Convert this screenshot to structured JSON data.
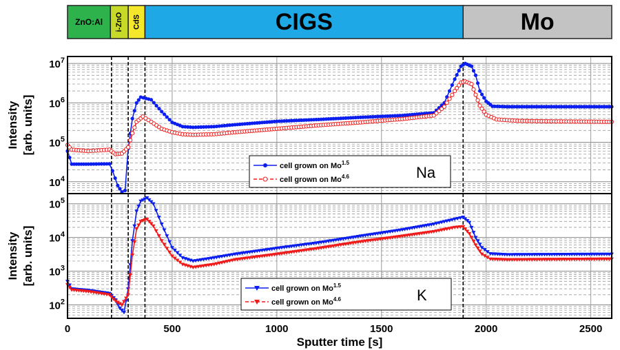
{
  "chart_data": {
    "type": "line",
    "x_axis": {
      "label": "Sputter time [s]",
      "range": [
        0,
        2600
      ],
      "ticks": [
        0,
        500,
        1000,
        1500,
        2000,
        2500
      ]
    },
    "layer_bar": [
      {
        "label": "ZnO:Al",
        "start": 0,
        "end": 205,
        "color": "#2eb24b"
      },
      {
        "label": "i-ZnO",
        "start": 205,
        "end": 290,
        "color": "#c7da2a"
      },
      {
        "label": "CdS",
        "start": 290,
        "end": 370,
        "color": "#f5e72a"
      },
      {
        "label": "CIGS",
        "start": 370,
        "end": 1890,
        "color": "#1ea9e6"
      },
      {
        "label": "Mo",
        "start": 1890,
        "end": 2600,
        "color": "#c3c3c3"
      }
    ],
    "interfaces": [
      210,
      290,
      370,
      1890
    ],
    "panels": [
      {
        "element": "Na",
        "ylabel": [
          "Intensity",
          "[arb. units]"
        ],
        "yscale": "log",
        "ylim": [
          5000,
          15000000
        ],
        "ytick_labels": [
          {
            "base": "10",
            "exp": "4",
            "value": 10000
          },
          {
            "base": "10",
            "exp": "5",
            "value": 100000
          },
          {
            "base": "10",
            "exp": "6",
            "value": 1000000
          },
          {
            "base": "10",
            "exp": "7",
            "value": 10000000
          }
        ],
        "legend": [
          {
            "text": "cell grown on Mo",
            "sup": "1.5"
          },
          {
            "text": "cell grown on Mo",
            "sup": "4.6"
          }
        ],
        "series": [
          {
            "name": "cell grown on Mo1.5",
            "color": "#0b1ef0",
            "marker": "dot",
            "points": [
              [
                0,
                60000
              ],
              [
                20,
                28000
              ],
              [
                100,
                28000
              ],
              [
                200,
                28500
              ],
              [
                215,
                19000
              ],
              [
                240,
                8000
              ],
              [
                260,
                5500
              ],
              [
                275,
                6000
              ],
              [
                290,
                70000
              ],
              [
                310,
                400000
              ],
              [
                330,
                1000000
              ],
              [
                350,
                1400000
              ],
              [
                400,
                1200000
              ],
              [
                450,
                600000
              ],
              [
                500,
                320000
              ],
              [
                550,
                250000
              ],
              [
                600,
                240000
              ],
              [
                700,
                250000
              ],
              [
                800,
                280000
              ],
              [
                1000,
                340000
              ],
              [
                1200,
                380000
              ],
              [
                1400,
                430000
              ],
              [
                1600,
                480000
              ],
              [
                1750,
                560000
              ],
              [
                1800,
                1000000
              ],
              [
                1850,
                4000000
              ],
              [
                1880,
                8500000
              ],
              [
                1900,
                10000000
              ],
              [
                1930,
                8500000
              ],
              [
                1950,
                5000000
              ],
              [
                1970,
                2000000
              ],
              [
                2000,
                1100000
              ],
              [
                2030,
                820000
              ],
              [
                2100,
                800000
              ],
              [
                2300,
                800000
              ],
              [
                2600,
                800000
              ]
            ]
          },
          {
            "name": "cell grown on Mo4.6",
            "color": "#f01b1b",
            "marker": "circle",
            "points": [
              [
                0,
                85000
              ],
              [
                20,
                65000
              ],
              [
                100,
                60000
              ],
              [
                200,
                65000
              ],
              [
                230,
                50000
              ],
              [
                260,
                52000
              ],
              [
                290,
                75000
              ],
              [
                310,
                170000
              ],
              [
                330,
                330000
              ],
              [
                360,
                450000
              ],
              [
                400,
                330000
              ],
              [
                450,
                220000
              ],
              [
                500,
                180000
              ],
              [
                550,
                160000
              ],
              [
                600,
                155000
              ],
              [
                700,
                160000
              ],
              [
                800,
                180000
              ],
              [
                1000,
                220000
              ],
              [
                1200,
                270000
              ],
              [
                1400,
                320000
              ],
              [
                1600,
                390000
              ],
              [
                1750,
                480000
              ],
              [
                1800,
                800000
              ],
              [
                1850,
                2000000
              ],
              [
                1880,
                3300000
              ],
              [
                1900,
                3500000
              ],
              [
                1930,
                3000000
              ],
              [
                1950,
                1600000
              ],
              [
                1970,
                850000
              ],
              [
                2000,
                500000
              ],
              [
                2050,
                380000
              ],
              [
                2150,
                350000
              ],
              [
                2300,
                340000
              ],
              [
                2600,
                330000
              ]
            ]
          }
        ]
      },
      {
        "element": "K",
        "ylabel": [
          "Intensity",
          "[arb. units]"
        ],
        "yscale": "log",
        "ylim": [
          40,
          200000
        ],
        "ytick_labels": [
          {
            "base": "10",
            "exp": "2",
            "value": 100
          },
          {
            "base": "10",
            "exp": "3",
            "value": 1000
          },
          {
            "base": "10",
            "exp": "4",
            "value": 10000
          },
          {
            "base": "10",
            "exp": "5",
            "value": 100000
          }
        ],
        "legend": [
          {
            "text": "cell grown on Mo",
            "sup": "1.5"
          },
          {
            "text": "cell grown on Mo",
            "sup": "4.6"
          }
        ],
        "series": [
          {
            "name": "cell grown on Mo1.5",
            "color": "#0b1ef0",
            "marker": "triangle-down",
            "points": [
              [
                0,
                500
              ],
              [
                20,
                300
              ],
              [
                100,
                270
              ],
              [
                200,
                220
              ],
              [
                230,
                140
              ],
              [
                250,
                80
              ],
              [
                270,
                60
              ],
              [
                290,
                300
              ],
              [
                310,
                8000
              ],
              [
                330,
                60000
              ],
              [
                350,
                120000
              ],
              [
                380,
                150000
              ],
              [
                410,
                100000
              ],
              [
                450,
                25000
              ],
              [
                500,
                5000
              ],
              [
                550,
                2500
              ],
              [
                600,
                2000
              ],
              [
                700,
                2500
              ],
              [
                800,
                3200
              ],
              [
                1000,
                4800
              ],
              [
                1200,
                7000
              ],
              [
                1400,
                11000
              ],
              [
                1600,
                17000
              ],
              [
                1750,
                25000
              ],
              [
                1850,
                35000
              ],
              [
                1890,
                40000
              ],
              [
                1920,
                28000
              ],
              [
                1950,
                10000
              ],
              [
                1980,
                5000
              ],
              [
                2020,
                3300
              ],
              [
                2100,
                3100
              ],
              [
                2600,
                3200
              ]
            ]
          },
          {
            "name": "cell grown on Mo4.6",
            "color": "#f01b1b",
            "marker": "triangle-down",
            "points": [
              [
                0,
                400
              ],
              [
                20,
                280
              ],
              [
                100,
                250
              ],
              [
                200,
                200
              ],
              [
                230,
                130
              ],
              [
                260,
                100
              ],
              [
                290,
                200
              ],
              [
                310,
                3000
              ],
              [
                330,
                18000
              ],
              [
                350,
                30000
              ],
              [
                380,
                35000
              ],
              [
                410,
                22000
              ],
              [
                450,
                8000
              ],
              [
                500,
                2800
              ],
              [
                550,
                1600
              ],
              [
                600,
                1300
              ],
              [
                700,
                1600
              ],
              [
                800,
                2200
              ],
              [
                1000,
                3200
              ],
              [
                1200,
                4800
              ],
              [
                1400,
                7500
              ],
              [
                1600,
                11000
              ],
              [
                1750,
                15000
              ],
              [
                1850,
                20000
              ],
              [
                1890,
                21000
              ],
              [
                1920,
                13000
              ],
              [
                1950,
                6000
              ],
              [
                1980,
                3200
              ],
              [
                2020,
                2300
              ],
              [
                2100,
                2200
              ],
              [
                2600,
                2300
              ]
            ]
          }
        ]
      }
    ]
  }
}
